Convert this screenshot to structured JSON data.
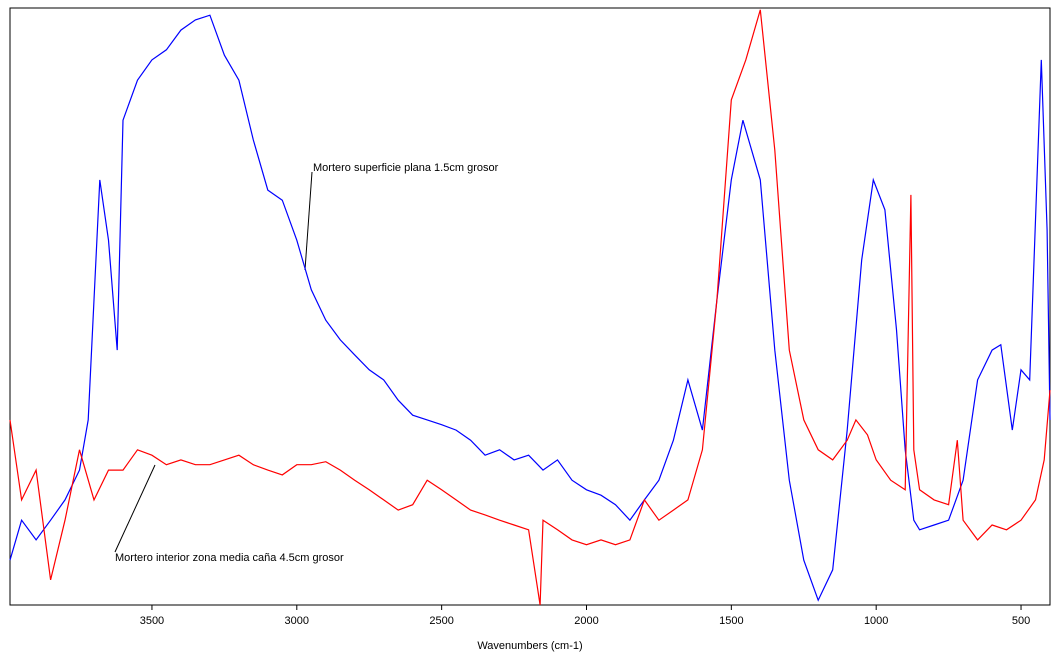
{
  "chart_data": {
    "type": "line",
    "x_label": "Wavenumbers (cm-1)",
    "xlim": [
      3990,
      400
    ],
    "xticks": [
      3500,
      3000,
      2500,
      2000,
      1500,
      1000,
      500
    ],
    "ylim": [
      0,
      100
    ],
    "series": [
      {
        "name": "Mortero superficie plana 1.5cm grosor",
        "color": "#0000ff",
        "x": [
          3990,
          3950,
          3900,
          3850,
          3800,
          3750,
          3720,
          3700,
          3680,
          3650,
          3620,
          3600,
          3550,
          3500,
          3450,
          3400,
          3350,
          3300,
          3250,
          3200,
          3150,
          3100,
          3050,
          3000,
          2950,
          2900,
          2850,
          2800,
          2750,
          2700,
          2650,
          2600,
          2550,
          2500,
          2450,
          2400,
          2350,
          2300,
          2250,
          2200,
          2150,
          2100,
          2050,
          2000,
          1950,
          1900,
          1850,
          1800,
          1750,
          1700,
          1650,
          1600,
          1550,
          1500,
          1460,
          1400,
          1350,
          1300,
          1250,
          1200,
          1150,
          1100,
          1050,
          1010,
          970,
          930,
          900,
          870,
          850,
          800,
          750,
          700,
          650,
          600,
          570,
          530,
          500,
          470,
          450,
          430,
          410,
          400
        ],
        "values": [
          7.5,
          14.2,
          10.9,
          14.2,
          17.6,
          22.6,
          31.0,
          51.1,
          71.2,
          61.1,
          42.7,
          81.2,
          87.9,
          91.3,
          93.0,
          96.3,
          98.0,
          98.8,
          92.1,
          87.9,
          77.9,
          69.5,
          67.8,
          61.1,
          52.8,
          47.7,
          44.4,
          41.9,
          39.4,
          37.7,
          34.3,
          31.8,
          31.0,
          30.2,
          29.3,
          27.6,
          25.1,
          26.0,
          24.3,
          25.1,
          22.6,
          24.3,
          20.9,
          19.3,
          18.4,
          16.8,
          14.2,
          17.6,
          20.9,
          27.6,
          37.7,
          29.3,
          51.1,
          71.2,
          81.2,
          71.2,
          42.7,
          20.9,
          7.5,
          0.8,
          5.9,
          29.3,
          57.8,
          71.2,
          66.2,
          46.1,
          26.0,
          14.2,
          12.6,
          13.4,
          14.2,
          20.9,
          37.7,
          42.7,
          43.6,
          29.3,
          39.4,
          37.7,
          64.5,
          91.3,
          62.8,
          31.0
        ]
      },
      {
        "name": "Mortero interior zona media caña 4.5cm grosor",
        "color": "#ff0000",
        "x": [
          3990,
          3950,
          3900,
          3850,
          3800,
          3750,
          3700,
          3650,
          3600,
          3550,
          3500,
          3450,
          3400,
          3350,
          3300,
          3250,
          3200,
          3150,
          3100,
          3050,
          3000,
          2950,
          2900,
          2850,
          2800,
          2750,
          2700,
          2650,
          2600,
          2550,
          2500,
          2450,
          2400,
          2350,
          2300,
          2250,
          2200,
          2160,
          2150,
          2100,
          2050,
          2000,
          1950,
          1900,
          1850,
          1800,
          1750,
          1700,
          1650,
          1600,
          1550,
          1500,
          1450,
          1400,
          1350,
          1300,
          1250,
          1200,
          1150,
          1100,
          1070,
          1030,
          1000,
          950,
          900,
          880,
          870,
          850,
          800,
          750,
          720,
          700,
          650,
          600,
          550,
          500,
          450,
          420,
          400
        ],
        "values": [
          31.0,
          17.6,
          22.6,
          4.2,
          14.2,
          26.0,
          17.6,
          22.6,
          22.6,
          26.0,
          25.1,
          23.5,
          24.3,
          23.5,
          23.5,
          24.3,
          25.1,
          23.5,
          22.6,
          21.8,
          23.5,
          23.5,
          24.0,
          22.6,
          20.9,
          19.3,
          17.6,
          15.9,
          16.8,
          20.9,
          19.3,
          17.6,
          15.9,
          15.1,
          14.2,
          13.4,
          12.6,
          0,
          14.2,
          12.6,
          10.9,
          10.1,
          10.9,
          10.1,
          10.9,
          17.6,
          14.2,
          15.9,
          17.6,
          26.0,
          51.1,
          84.6,
          91.3,
          99.7,
          76.2,
          42.7,
          31.0,
          26.0,
          24.3,
          27.6,
          31.0,
          28.5,
          24.3,
          20.9,
          19.3,
          68.7,
          26.0,
          19.3,
          17.6,
          16.8,
          27.6,
          14.2,
          10.9,
          13.4,
          12.6,
          14.2,
          17.6,
          24.3,
          36.0
        ]
      }
    ]
  }
}
